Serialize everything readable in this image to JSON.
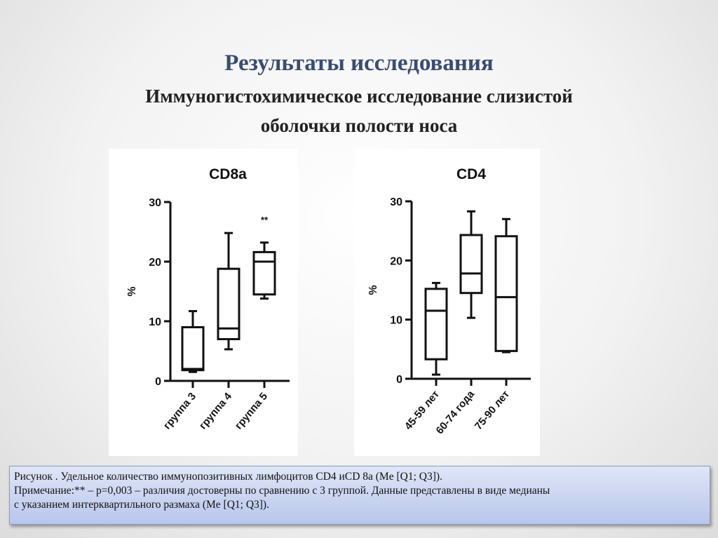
{
  "title": "Результаты исследования",
  "subtitle_line1": "Иммуногистохимическое исследование слизистой",
  "subtitle_line2": "оболочки полости носа",
  "chart_data": [
    {
      "type": "box",
      "title": "CD8a",
      "ylabel": "%",
      "ylim": [
        0,
        30
      ],
      "yticks": [
        0,
        10,
        20,
        30
      ],
      "categories": [
        "группа 3",
        "группа 4",
        "группа 5"
      ],
      "boxes": [
        {
          "min": 1.5,
          "q1": 1.8,
          "median": 2,
          "q3": 9,
          "max": 11.7
        },
        {
          "min": 5.3,
          "q1": 7,
          "median": 8.8,
          "q3": 18.8,
          "max": 24.8
        },
        {
          "min": 13.8,
          "q1": 14.5,
          "median": 20,
          "q3": 21.6,
          "max": 23.2
        }
      ],
      "annotations": [
        "",
        "",
        "**"
      ]
    },
    {
      "type": "box",
      "title": "CD4",
      "ylabel": "%",
      "ylim": [
        0,
        30
      ],
      "yticks": [
        0,
        10,
        20,
        30
      ],
      "categories": [
        "45-59 лет",
        "60-74 года",
        "75-90 лет"
      ],
      "boxes": [
        {
          "min": 0.7,
          "q1": 3.3,
          "median": 11.5,
          "q3": 15.2,
          "max": 16.2
        },
        {
          "min": 10.3,
          "q1": 14.5,
          "median": 17.8,
          "q3": 24.3,
          "max": 28.3
        },
        {
          "min": 4.5,
          "q1": 4.7,
          "median": 13.8,
          "q3": 24.1,
          "max": 27
        }
      ],
      "annotations": [
        "",
        "",
        ""
      ]
    }
  ],
  "caption": {
    "line1": "Рисунок . Удельное количество иммунопозитивных лимфоцитов CD4 иCD 8a (Me [Q1; Q3]).",
    "line2": "Примечание:** – p=0,003 – различия достоверны по сравнению с 3 группой. Данные представлены в виде медианы",
    "line3": "с указанием интерквартильного размаха (Me [Q1; Q3])."
  }
}
